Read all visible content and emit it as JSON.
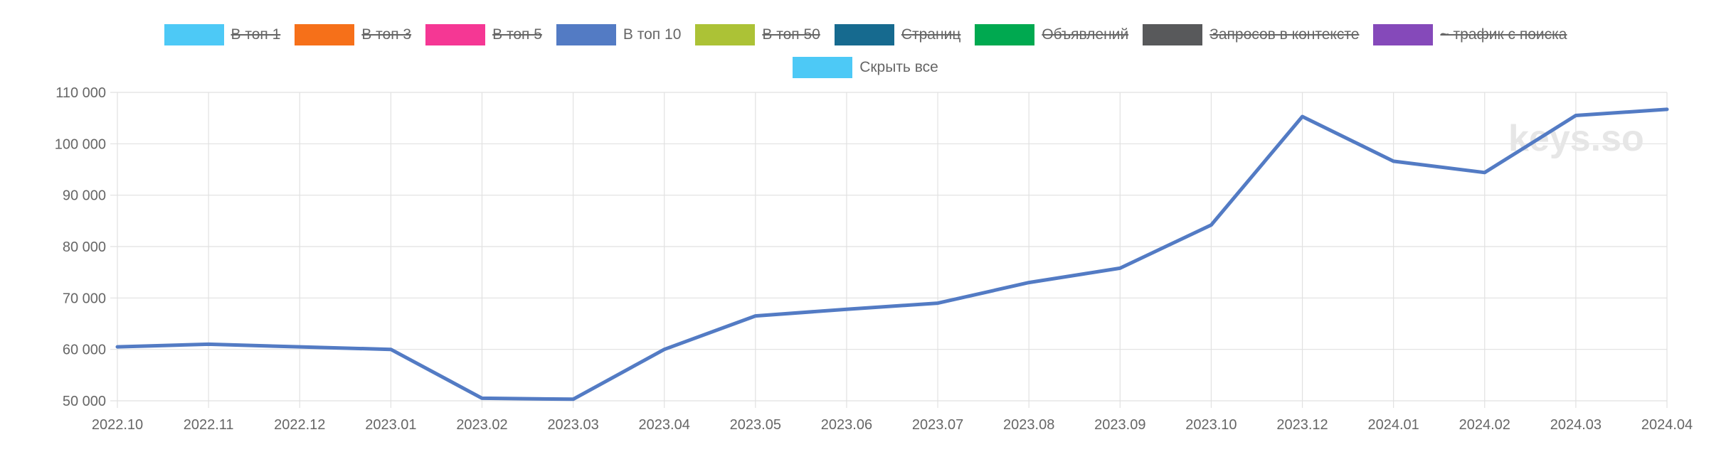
{
  "legend": {
    "items": [
      {
        "label": "В топ 1",
        "color": "#4dc9f6",
        "hidden": true
      },
      {
        "label": "В топ 3",
        "color": "#f67019",
        "hidden": true
      },
      {
        "label": "В топ 5",
        "color": "#f53794",
        "hidden": true
      },
      {
        "label": "В топ 10",
        "color": "#537bc4",
        "hidden": false
      },
      {
        "label": "В топ 50",
        "color": "#acc236",
        "hidden": true
      },
      {
        "label": "Страниц",
        "color": "#166a8f",
        "hidden": true
      },
      {
        "label": "Объявлений",
        "color": "#00a950",
        "hidden": true
      },
      {
        "label": "Запросов в контексте",
        "color": "#58595b",
        "hidden": true
      },
      {
        "label": "~ трафик с поиска",
        "color": "#8549ba",
        "hidden": true
      }
    ],
    "hide_all": {
      "label": "Скрыть все",
      "color": "#4dc9f6"
    }
  },
  "watermark": "keys.so",
  "chart_data": {
    "type": "line",
    "x": [
      "2022.10",
      "2022.11",
      "2022.12",
      "2023.01",
      "2023.02",
      "2023.03",
      "2023.04",
      "2023.05",
      "2023.06",
      "2023.07",
      "2023.08",
      "2023.09",
      "2023.10",
      "2023.12",
      "2024.01",
      "2024.02",
      "2024.03",
      "2024.04"
    ],
    "series": [
      {
        "name": "В топ 10",
        "color": "#537bc4",
        "values": [
          60500,
          61000,
          60500,
          60000,
          50500,
          50300,
          60000,
          66500,
          67800,
          69000,
          73000,
          75800,
          84200,
          105300,
          96600,
          94400,
          105500,
          106700
        ]
      }
    ],
    "ylim": [
      50000,
      110000
    ],
    "yticks": [
      50000,
      60000,
      70000,
      80000,
      90000,
      100000,
      110000
    ],
    "ytick_labels": [
      "50 000",
      "60 000",
      "70 000",
      "80 000",
      "90 000",
      "100 000",
      "110 000"
    ],
    "grid": true,
    "legend_position": "top"
  }
}
